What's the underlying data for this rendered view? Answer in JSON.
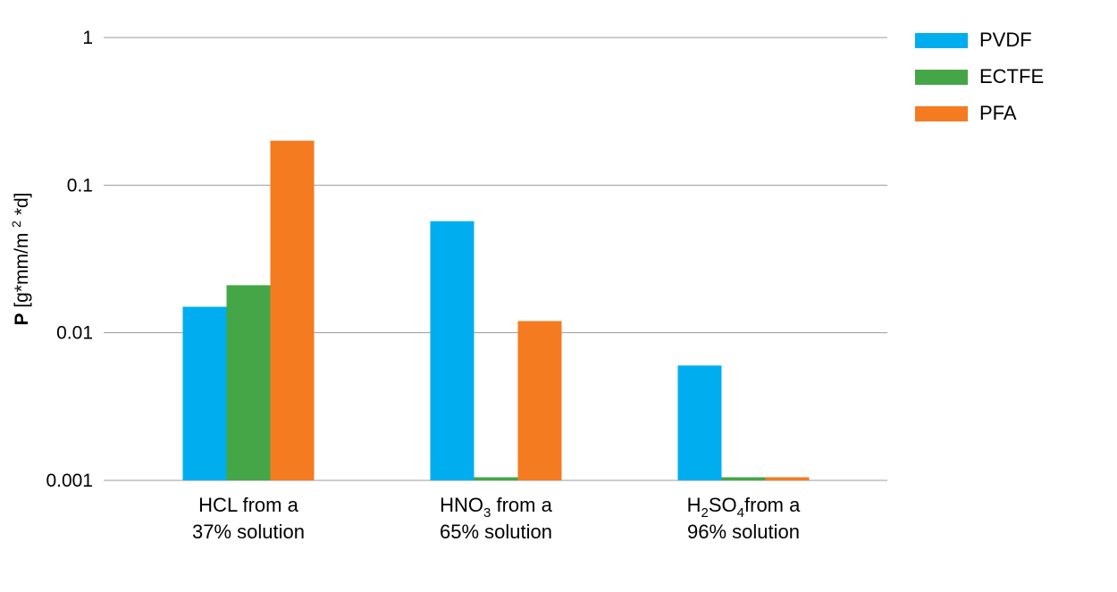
{
  "chart_data": {
    "type": "bar",
    "y_scale": "log",
    "ylim": [
      0.001,
      1
    ],
    "grid": true,
    "legend_position": "top-right",
    "yticks": [
      "1",
      "0.1",
      "0.01",
      "0.001"
    ],
    "ylabel": {
      "bold": "P",
      "rest": "[g*mm/m",
      "sup": "2",
      "end": "*d]"
    },
    "categories": [
      {
        "line1": {
          "main": "HCL from a"
        },
        "line2": "37% solution"
      },
      {
        "line1": {
          "a": "HNO",
          "sub1": "3",
          "b": " from a"
        },
        "line2": "65% solution"
      },
      {
        "line1": {
          "a": "H",
          "sub1": "2",
          "b": "SO",
          "sub2": "4",
          "c": "from a"
        },
        "line2": "96% solution"
      }
    ],
    "series": [
      {
        "name": "PVDF",
        "color": "#00AEEF",
        "values": [
          0.015,
          0.057,
          0.006
        ]
      },
      {
        "name": "ECTFE",
        "color": "#45A647",
        "values": [
          0.021,
          0.00105,
          0.00105
        ]
      },
      {
        "name": "PFA",
        "color": "#F47B20",
        "values": [
          0.2,
          0.012,
          0.00105
        ]
      }
    ]
  }
}
